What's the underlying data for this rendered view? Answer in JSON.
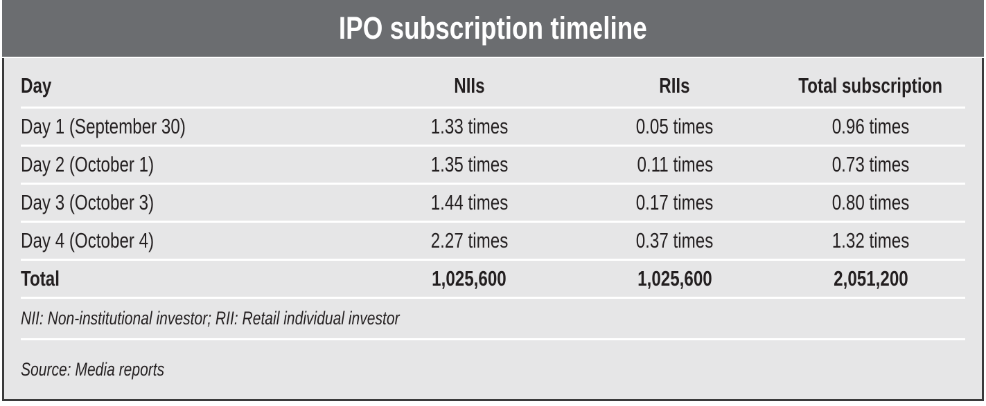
{
  "title": "IPO subscription timeline",
  "chart_data": {
    "type": "table",
    "title": "IPO subscription timeline",
    "columns": [
      "Day",
      "NIIs",
      "RIIs",
      "Total subscription"
    ],
    "rows": [
      [
        "Day 1 (September 30)",
        "1.33 times",
        "0.05 times",
        "0.96 times"
      ],
      [
        "Day 2 (October 1)",
        "1.35 times",
        "0.11 times",
        "0.73 times"
      ],
      [
        "Day 3 (October 3)",
        "1.44 times",
        "0.17 times",
        "0.80 times"
      ],
      [
        "Day 4 (October 4)",
        "2.27 times",
        "0.37 times",
        "1.32 times"
      ]
    ],
    "total_row": [
      "Total",
      "1,025,600",
      "1,025,600",
      "2,051,200"
    ],
    "footnote": "NII: Non-institutional investor; RII: Retail individual investor",
    "source": "Source: Media reports"
  },
  "colors": {
    "title_bar_bg": "#6b6d70",
    "title_text": "#ffffff",
    "body_bg": "#e6e6e7",
    "row_divider": "#ffffff",
    "outer_border": "#3a3a3b",
    "text": "#231f20"
  }
}
